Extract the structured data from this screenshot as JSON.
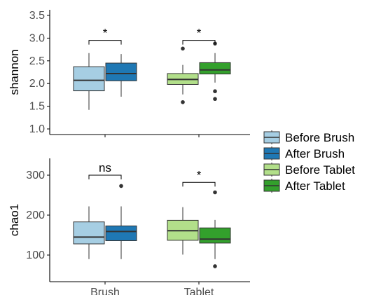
{
  "colors": {
    "before_brush": "#a6cee3",
    "after_brush": "#1f78b4",
    "before_tablet": "#b2df8a",
    "after_tablet": "#33a02c",
    "axis": "#000000",
    "outline": "#333333",
    "tick_text": "#4d4d4d"
  },
  "legend": {
    "items": [
      {
        "label": "Before Brush",
        "color": "#a6cee3"
      },
      {
        "label": "After Brush",
        "color": "#1f78b4"
      },
      {
        "label": "Before Tablet",
        "color": "#b2df8a"
      },
      {
        "label": "After Tablet",
        "color": "#33a02c"
      }
    ]
  },
  "chart_data": [
    {
      "type": "boxplot",
      "ylabel": "shannon",
      "xlabel": "",
      "ylim": [
        0.9,
        3.55
      ],
      "yticks": [
        "1.0",
        "1.5",
        "2.0",
        "2.5",
        "3.0",
        "3.5"
      ],
      "categories": [
        "Brush",
        "Tablet"
      ],
      "show_x_ticks": false,
      "grid": false,
      "series": [
        {
          "name": "Before Brush",
          "category": "Brush",
          "color": "#a6cee3",
          "min": 1.42,
          "q1": 1.84,
          "median": 2.07,
          "q3": 2.37,
          "max": 2.67,
          "outliers": []
        },
        {
          "name": "After Brush",
          "category": "Brush",
          "color": "#1f78b4",
          "min": 1.71,
          "q1": 2.06,
          "median": 2.22,
          "q3": 2.45,
          "max": 2.65,
          "outliers": []
        },
        {
          "name": "Before Tablet",
          "category": "Tablet",
          "color": "#b2df8a",
          "min": 1.76,
          "q1": 1.98,
          "median": 2.09,
          "q3": 2.22,
          "max": 2.41,
          "outliers": [
            1.59,
            2.77
          ]
        },
        {
          "name": "After Tablet",
          "category": "Tablet",
          "color": "#33a02c",
          "min": 2.02,
          "q1": 2.21,
          "median": 2.3,
          "q3": 2.46,
          "max": 2.67,
          "outliers": [
            1.66,
            1.83,
            2.88
          ]
        }
      ],
      "annotations": [
        {
          "category": "Brush",
          "label": "*",
          "y": 2.95
        },
        {
          "category": "Tablet",
          "label": "*",
          "y": 2.95
        }
      ]
    },
    {
      "type": "boxplot",
      "ylabel": "chao1",
      "xlabel": "",
      "ylim": [
        50,
        345
      ],
      "yticks": [
        "100",
        "200",
        "300"
      ],
      "categories": [
        "Brush",
        "Tablet"
      ],
      "show_x_ticks": true,
      "grid": false,
      "series": [
        {
          "name": "Before Brush",
          "category": "Brush",
          "color": "#a6cee3",
          "min": 90,
          "q1": 128,
          "median": 145,
          "q3": 183,
          "max": 222,
          "outliers": []
        },
        {
          "name": "After Brush",
          "category": "Brush",
          "color": "#1f78b4",
          "min": 90,
          "q1": 136,
          "median": 159,
          "q3": 173,
          "max": 222,
          "outliers": [
            273
          ]
        },
        {
          "name": "Before Tablet",
          "category": "Tablet",
          "color": "#b2df8a",
          "min": 101,
          "q1": 137,
          "median": 161,
          "q3": 187,
          "max": 220,
          "outliers": []
        },
        {
          "name": "After Tablet",
          "category": "Tablet",
          "color": "#33a02c",
          "min": 90,
          "q1": 130,
          "median": 140,
          "q3": 168,
          "max": 188,
          "outliers": [
            72,
            257
          ]
        }
      ],
      "annotations": [
        {
          "category": "Brush",
          "label": "ns",
          "y": 300
        },
        {
          "category": "Tablet",
          "label": "*",
          "y": 282
        }
      ]
    }
  ]
}
